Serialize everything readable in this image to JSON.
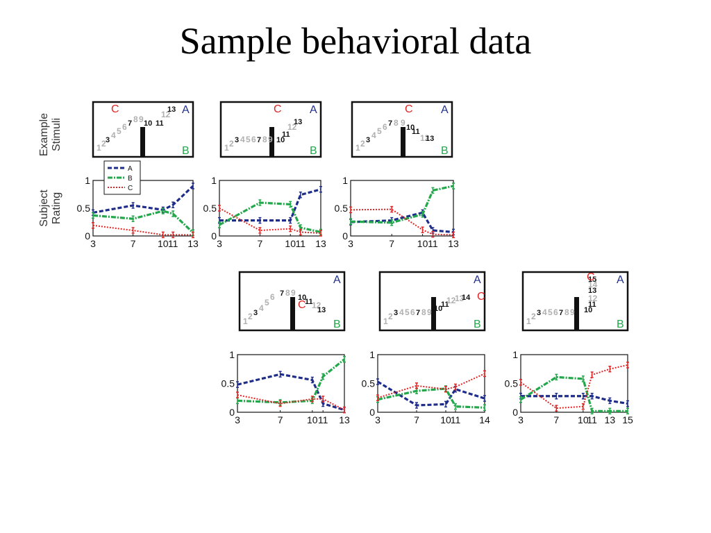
{
  "title": "Sample behavioral data",
  "row_labels": {
    "stimuli": [
      "Example",
      "Stimuli"
    ],
    "rating": [
      "Subject",
      "Rating"
    ]
  },
  "colors": {
    "A": "#1f2d8a",
    "B": "#22a84a",
    "C": "#e02424",
    "gray": "#b0b0b0",
    "black": "#111111"
  },
  "legend": [
    "A",
    "B",
    "C"
  ],
  "stimuli": [
    {
      "labels": {
        "A": "A",
        "B": "B",
        "C": "C"
      },
      "numbers": [
        {
          "t": "1",
          "c": "gray"
        },
        {
          "t": "2",
          "c": "gray"
        },
        {
          "t": "3",
          "c": "black"
        },
        {
          "t": "4",
          "c": "gray"
        },
        {
          "t": "5",
          "c": "gray"
        },
        {
          "t": "6",
          "c": "gray"
        },
        {
          "t": "7",
          "c": "black"
        },
        {
          "t": "8",
          "c": "gray"
        },
        {
          "t": "9",
          "c": "gray"
        },
        {
          "t": "10",
          "c": "black"
        },
        {
          "t": "11",
          "c": "black"
        },
        {
          "t": "12",
          "c": "gray"
        },
        {
          "t": "13",
          "c": "black"
        }
      ]
    },
    {
      "labels": {
        "A": "A",
        "B": "B",
        "C": "C"
      },
      "numbers": [
        {
          "t": "1",
          "c": "gray"
        },
        {
          "t": "2",
          "c": "gray"
        },
        {
          "t": "3",
          "c": "black"
        },
        {
          "t": "4",
          "c": "gray"
        },
        {
          "t": "5",
          "c": "gray"
        },
        {
          "t": "6",
          "c": "gray"
        },
        {
          "t": "7",
          "c": "black"
        },
        {
          "t": "8",
          "c": "gray"
        },
        {
          "t": "9",
          "c": "gray"
        },
        {
          "t": "10",
          "c": "black"
        },
        {
          "t": "11",
          "c": "black"
        },
        {
          "t": "12",
          "c": "gray"
        },
        {
          "t": "13",
          "c": "black"
        }
      ]
    },
    {
      "labels": {
        "A": "A",
        "B": "B",
        "C": "C"
      },
      "numbers": [
        {
          "t": "1",
          "c": "gray"
        },
        {
          "t": "2",
          "c": "gray"
        },
        {
          "t": "3",
          "c": "black"
        },
        {
          "t": "4",
          "c": "gray"
        },
        {
          "t": "5",
          "c": "gray"
        },
        {
          "t": "6",
          "c": "gray"
        },
        {
          "t": "7",
          "c": "black"
        },
        {
          "t": "8",
          "c": "gray"
        },
        {
          "t": "9",
          "c": "gray"
        },
        {
          "t": "10",
          "c": "black"
        },
        {
          "t": "11",
          "c": "black"
        },
        {
          "t": "12",
          "c": "gray"
        },
        {
          "t": "13",
          "c": "black"
        }
      ]
    },
    {
      "labels": {
        "A": "A",
        "B": "B",
        "C": "C"
      },
      "numbers": [
        {
          "t": "1",
          "c": "gray"
        },
        {
          "t": "2",
          "c": "gray"
        },
        {
          "t": "3",
          "c": "black"
        },
        {
          "t": "4",
          "c": "gray"
        },
        {
          "t": "5",
          "c": "gray"
        },
        {
          "t": "6",
          "c": "gray"
        },
        {
          "t": "7",
          "c": "black"
        },
        {
          "t": "8",
          "c": "gray"
        },
        {
          "t": "9",
          "c": "gray"
        },
        {
          "t": "10",
          "c": "black"
        },
        {
          "t": "11",
          "c": "black"
        },
        {
          "t": "12",
          "c": "gray"
        },
        {
          "t": "13",
          "c": "black"
        }
      ]
    },
    {
      "labels": {
        "A": "A",
        "B": "B",
        "C": "C"
      },
      "numbers": [
        {
          "t": "1",
          "c": "gray"
        },
        {
          "t": "2",
          "c": "gray"
        },
        {
          "t": "3",
          "c": "black"
        },
        {
          "t": "4",
          "c": "gray"
        },
        {
          "t": "5",
          "c": "gray"
        },
        {
          "t": "6",
          "c": "gray"
        },
        {
          "t": "7",
          "c": "black"
        },
        {
          "t": "8",
          "c": "gray"
        },
        {
          "t": "9",
          "c": "gray"
        },
        {
          "t": "10",
          "c": "black"
        },
        {
          "t": "11",
          "c": "black"
        },
        {
          "t": "12",
          "c": "gray"
        },
        {
          "t": "13",
          "c": "gray"
        },
        {
          "t": "14",
          "c": "black"
        }
      ]
    },
    {
      "labels": {
        "A": "A",
        "B": "B",
        "C": "C"
      },
      "numbers": [
        {
          "t": "1",
          "c": "gray"
        },
        {
          "t": "2",
          "c": "gray"
        },
        {
          "t": "3",
          "c": "black"
        },
        {
          "t": "4",
          "c": "gray"
        },
        {
          "t": "5",
          "c": "gray"
        },
        {
          "t": "6",
          "c": "gray"
        },
        {
          "t": "7",
          "c": "black"
        },
        {
          "t": "8",
          "c": "gray"
        },
        {
          "t": "9",
          "c": "gray"
        },
        {
          "t": "10",
          "c": "black"
        },
        {
          "t": "11",
          "c": "black"
        },
        {
          "t": "12",
          "c": "gray"
        },
        {
          "t": "13",
          "c": "black"
        },
        {
          "t": "14",
          "c": "gray"
        },
        {
          "t": "15",
          "c": "black"
        }
      ]
    }
  ],
  "chart_data": [
    {
      "type": "line",
      "ylim": [
        0,
        1
      ],
      "yticks": [
        "0",
        "0.5",
        "1"
      ],
      "x": [
        3,
        7,
        10,
        11,
        13
      ],
      "xticklabels": [
        "3",
        "7",
        "10",
        "11",
        "13"
      ],
      "series": [
        {
          "name": "A",
          "values": [
            0.42,
            0.55,
            0.47,
            0.56,
            0.9
          ]
        },
        {
          "name": "B",
          "values": [
            0.37,
            0.31,
            0.45,
            0.4,
            0.06
          ]
        },
        {
          "name": "C",
          "values": [
            0.19,
            0.1,
            0.02,
            0.02,
            0.02
          ]
        }
      ]
    },
    {
      "type": "line",
      "ylim": [
        0,
        1
      ],
      "yticks": [
        "0",
        "0.5",
        "1"
      ],
      "x": [
        3,
        7,
        10,
        11,
        13
      ],
      "xticklabels": [
        "3",
        "7",
        "10",
        "11",
        "13"
      ],
      "series": [
        {
          "name": "A",
          "values": [
            0.28,
            0.28,
            0.28,
            0.74,
            0.84
          ]
        },
        {
          "name": "B",
          "values": [
            0.2,
            0.6,
            0.57,
            0.15,
            0.07
          ]
        },
        {
          "name": "C",
          "values": [
            0.5,
            0.1,
            0.13,
            0.07,
            0.05
          ]
        }
      ]
    },
    {
      "type": "line",
      "ylim": [
        0,
        1
      ],
      "yticks": [
        "0",
        "0.5",
        "1"
      ],
      "x": [
        3,
        7,
        10,
        11,
        13
      ],
      "xticklabels": [
        "3",
        "7",
        "10",
        "11",
        "13"
      ],
      "series": [
        {
          "name": "A",
          "values": [
            0.25,
            0.28,
            0.42,
            0.1,
            0.07
          ]
        },
        {
          "name": "B",
          "values": [
            0.26,
            0.24,
            0.39,
            0.82,
            0.9
          ]
        },
        {
          "name": "C",
          "values": [
            0.47,
            0.48,
            0.11,
            0.03,
            0.02
          ]
        }
      ]
    },
    {
      "type": "line",
      "ylim": [
        0,
        1
      ],
      "yticks": [
        "0",
        "0.5",
        "1"
      ],
      "x": [
        3,
        7,
        10,
        11,
        13
      ],
      "xticklabels": [
        "3",
        "7",
        "10",
        "11",
        "13"
      ],
      "series": [
        {
          "name": "A",
          "values": [
            0.48,
            0.66,
            0.56,
            0.15,
            0.04
          ]
        },
        {
          "name": "B",
          "values": [
            0.2,
            0.17,
            0.2,
            0.62,
            0.92
          ]
        },
        {
          "name": "C",
          "values": [
            0.3,
            0.15,
            0.23,
            0.23,
            0.04
          ]
        }
      ]
    },
    {
      "type": "line",
      "ylim": [
        0,
        1
      ],
      "yticks": [
        "0",
        "0.5",
        "1"
      ],
      "x": [
        3,
        7,
        10,
        11,
        14
      ],
      "xticklabels": [
        "3",
        "7",
        "10",
        "11",
        "14"
      ],
      "series": [
        {
          "name": "A",
          "values": [
            0.53,
            0.12,
            0.14,
            0.4,
            0.24
          ]
        },
        {
          "name": "B",
          "values": [
            0.22,
            0.37,
            0.41,
            0.1,
            0.08
          ]
        },
        {
          "name": "C",
          "values": [
            0.25,
            0.46,
            0.4,
            0.44,
            0.67
          ]
        }
      ]
    },
    {
      "type": "line",
      "ylim": [
        0,
        1
      ],
      "yticks": [
        "0",
        "0.5",
        "1"
      ],
      "x": [
        3,
        7,
        10,
        11,
        13,
        15
      ],
      "xticklabels": [
        "3",
        "7",
        "10",
        "11",
        "13",
        "15"
      ],
      "series": [
        {
          "name": "A",
          "values": [
            0.28,
            0.28,
            0.28,
            0.28,
            0.2,
            0.15
          ]
        },
        {
          "name": "B",
          "values": [
            0.22,
            0.61,
            0.58,
            0.02,
            0.02,
            0.02
          ]
        },
        {
          "name": "C",
          "values": [
            0.52,
            0.07,
            0.1,
            0.65,
            0.75,
            0.82
          ]
        }
      ]
    }
  ]
}
